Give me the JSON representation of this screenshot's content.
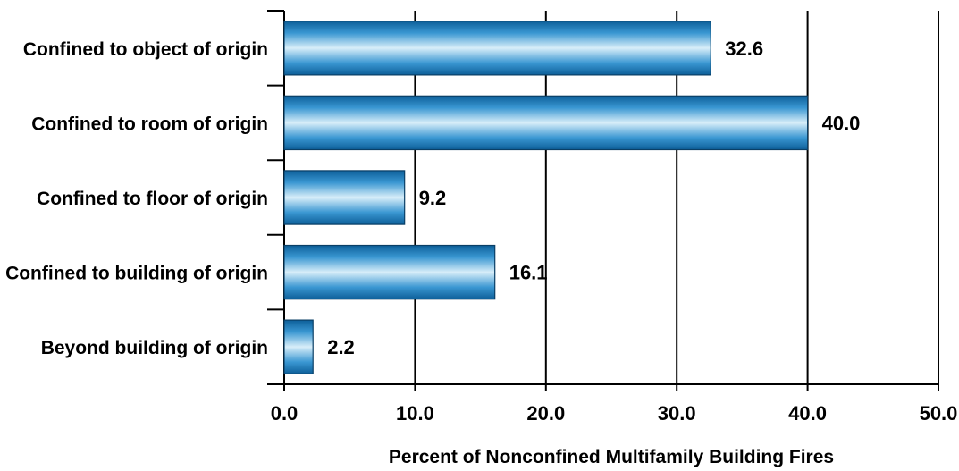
{
  "chart_data": {
    "type": "bar",
    "orientation": "horizontal",
    "categories": [
      "Confined to object of origin",
      "Confined to room of origin",
      "Confined to floor of origin",
      "Confined to building of origin",
      "Beyond building of origin"
    ],
    "values": [
      32.6,
      40.0,
      9.2,
      16.1,
      2.2
    ],
    "value_labels": [
      "32.6",
      "40.0",
      "9.2",
      "16.1",
      "2.2"
    ],
    "xlabel": "Percent of Nonconfined Multifamily Building Fires",
    "ylabel": "",
    "xlim": [
      0,
      50
    ],
    "ticks": [
      0,
      10,
      20,
      30,
      40,
      50
    ],
    "tick_labels": [
      "0.0",
      "10.0",
      "20.0",
      "30.0",
      "40.0",
      "50.0"
    ],
    "grid": "vertical",
    "bar_color": "#1a7fc0"
  }
}
